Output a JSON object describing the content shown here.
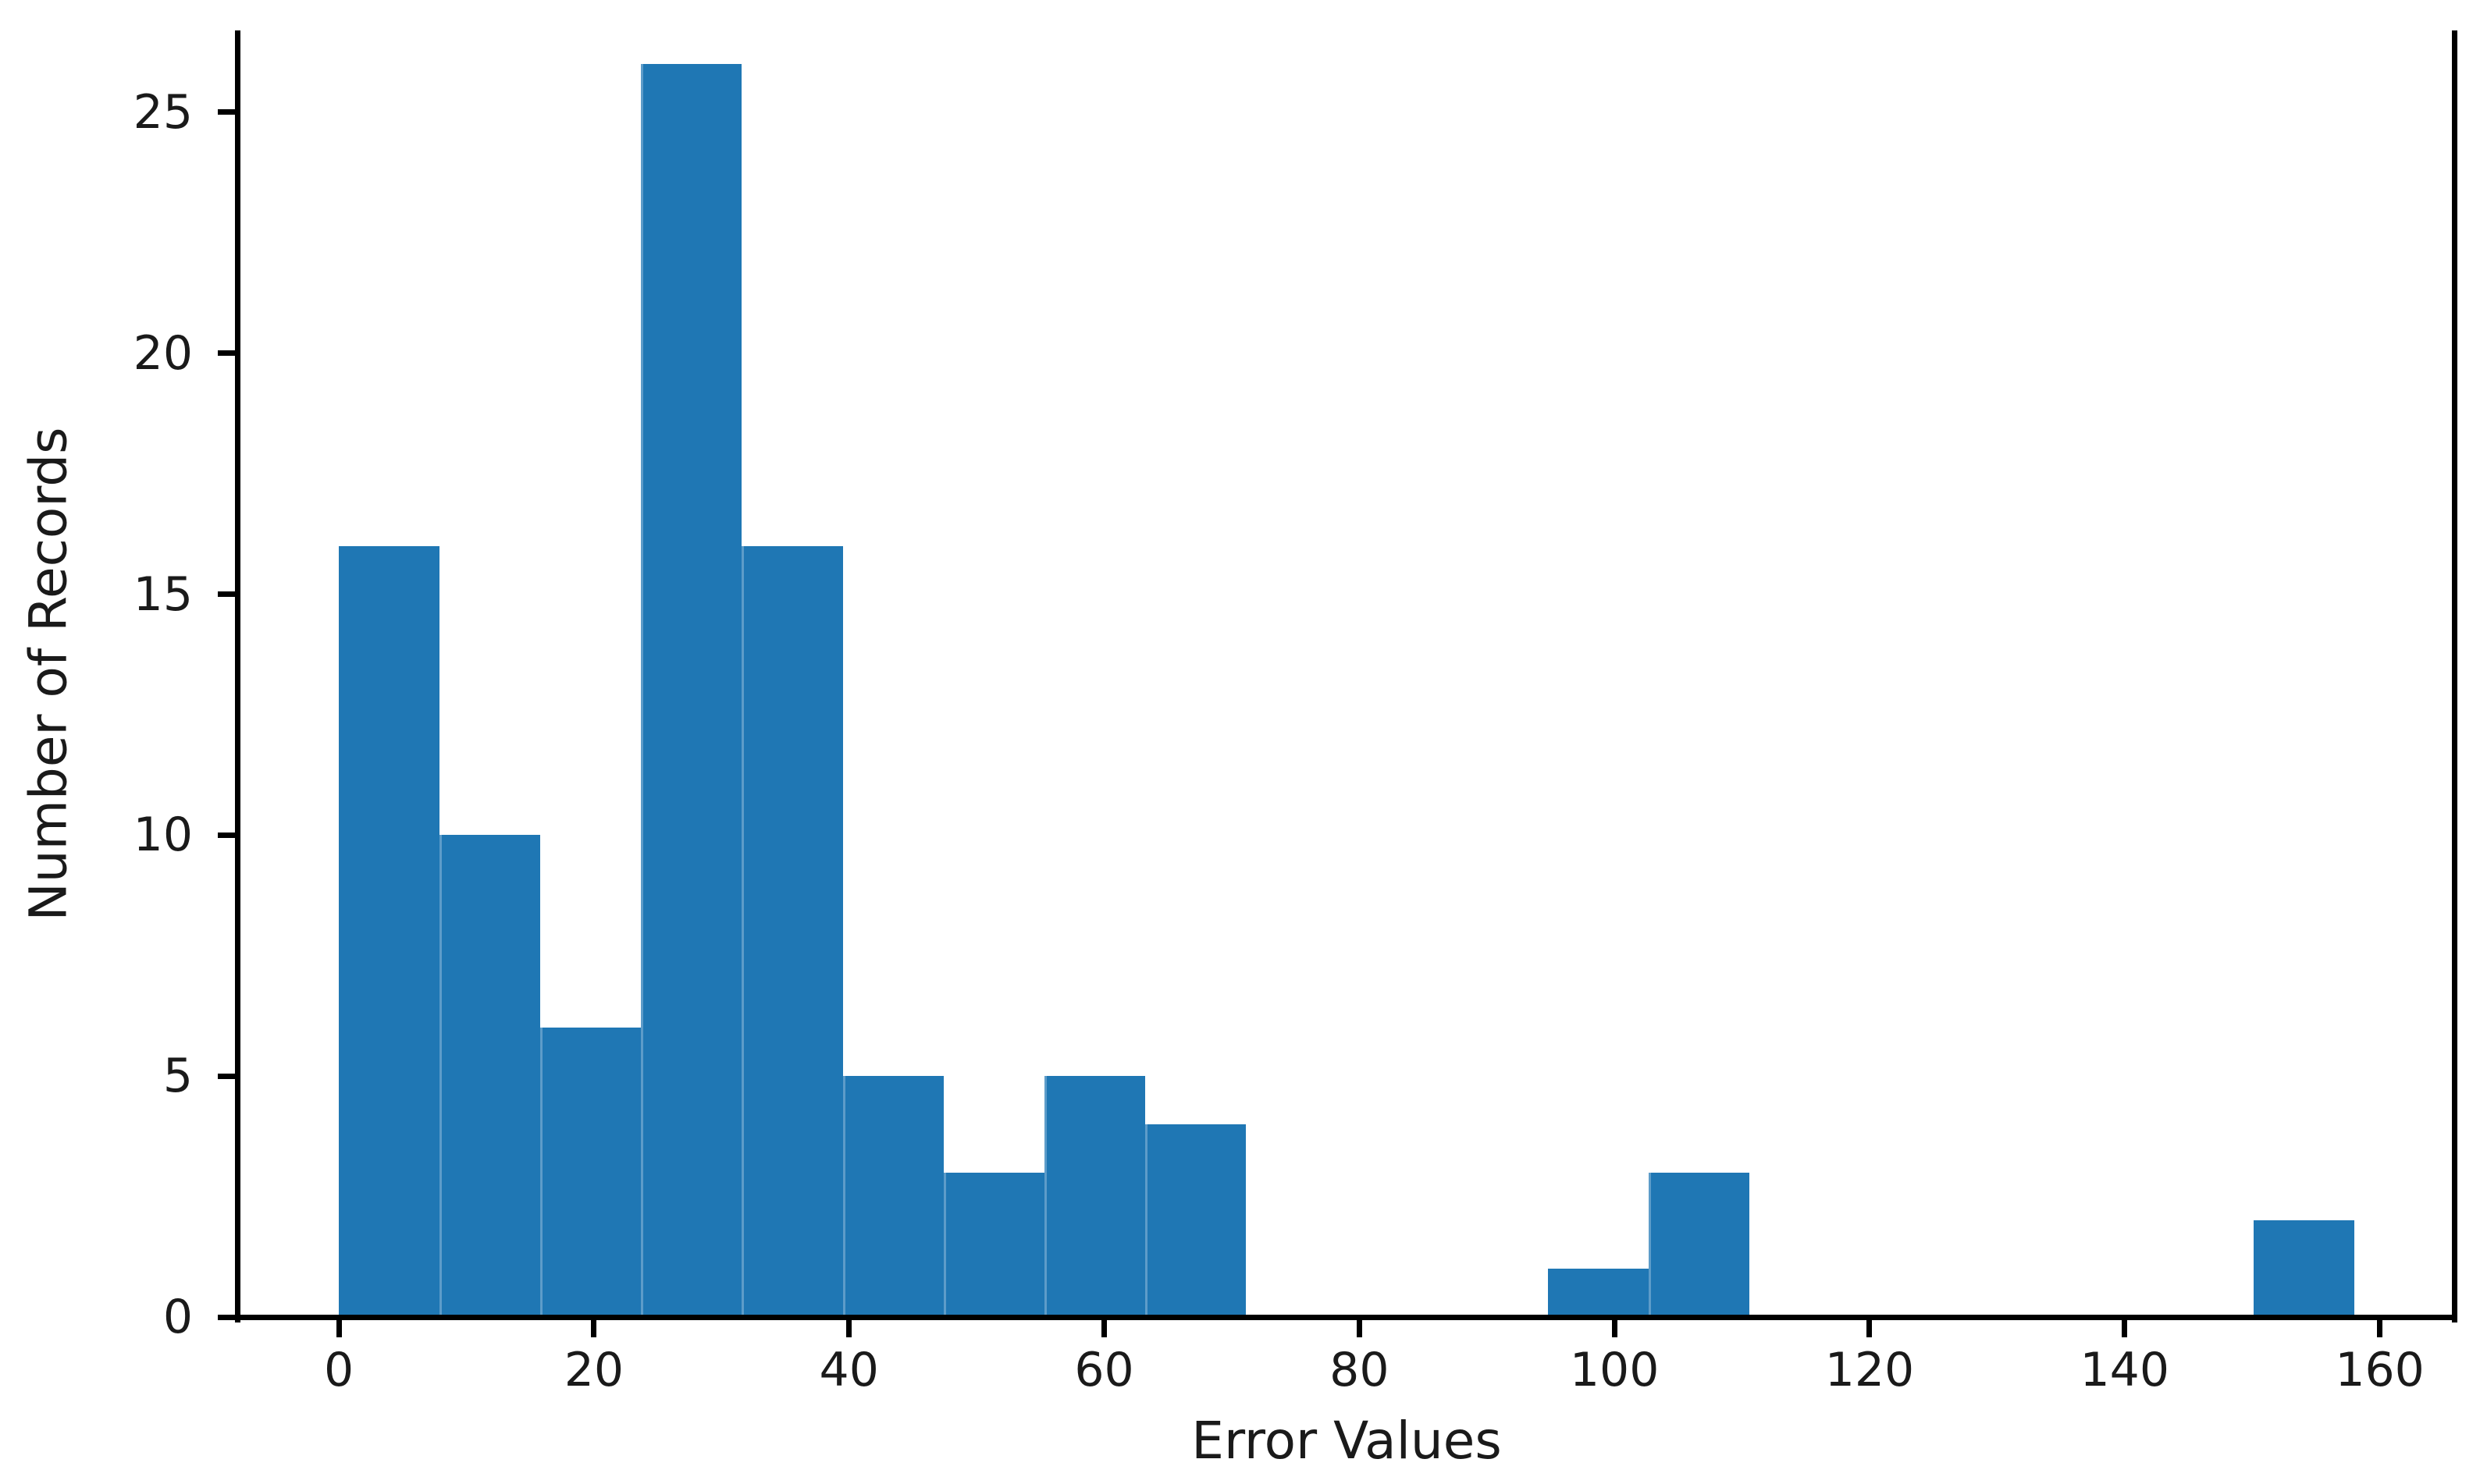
{
  "chart_data": {
    "type": "bar",
    "subtype": "histogram",
    "title": "",
    "xlabel": "Error Values",
    "ylabel": "Number of Records",
    "bin_edges": [
      0,
      7.9,
      15.8,
      23.7,
      31.6,
      39.5,
      47.4,
      55.3,
      63.2,
      71.1,
      79.0,
      86.9,
      94.8,
      102.7,
      110.6,
      118.5,
      126.4,
      134.3,
      142.2,
      150.1,
      158.0
    ],
    "counts": [
      16,
      10,
      6,
      26,
      16,
      5,
      3,
      5,
      4,
      0,
      0,
      0,
      1,
      3,
      0,
      0,
      0,
      0,
      0,
      2
    ],
    "x_ticks": [
      0,
      20,
      40,
      60,
      80,
      100,
      120,
      140,
      160
    ],
    "y_ticks": [
      0,
      5,
      10,
      15,
      20,
      25
    ],
    "xlim": [
      -7.9,
      165.9
    ],
    "ylim": [
      0,
      26.7
    ],
    "bar_color": "#1f77b4",
    "axis_color": "#000000",
    "text_color": "#1a1a1a",
    "background_color": "#ffffff",
    "grid": false,
    "legend": null
  }
}
